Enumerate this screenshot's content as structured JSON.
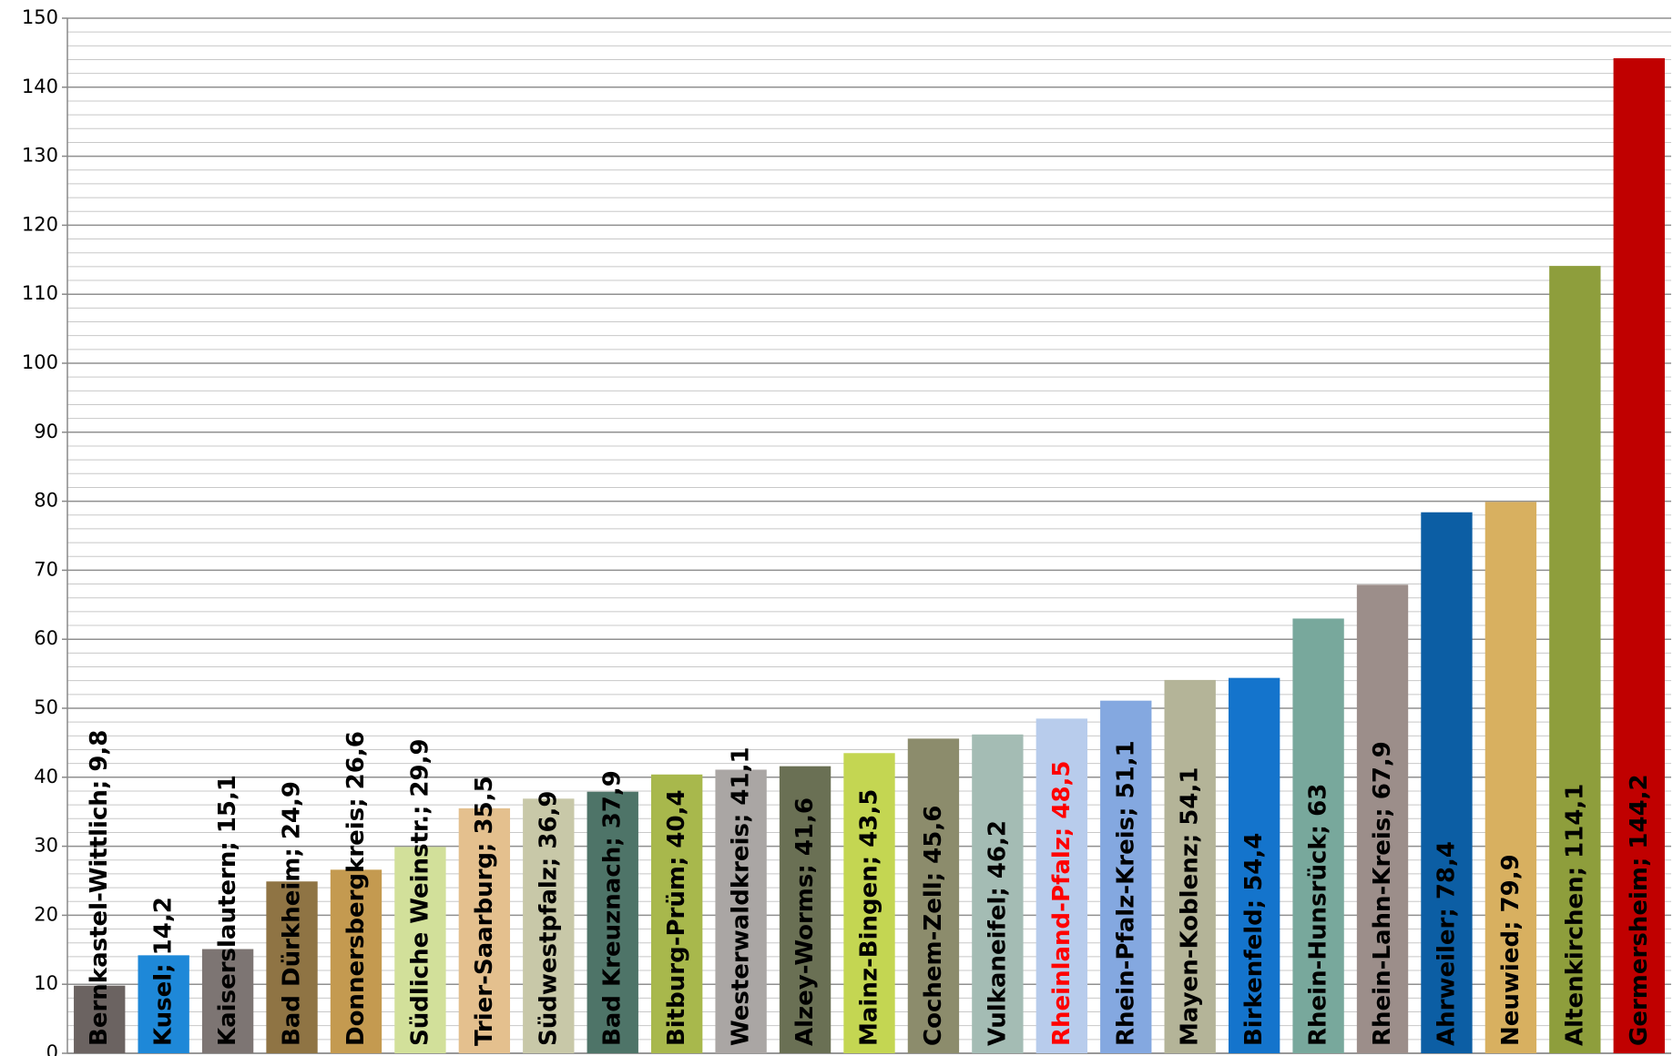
{
  "chart_data": {
    "type": "bar",
    "categories": [
      "Bernkastel-Wittlich",
      "Kusel",
      "Kaiserslautern",
      "Bad Dürkheim",
      "Donnersbergkreis",
      "Südliche Weinstr.",
      "Trier-Saarburg",
      "Südwestpfalz",
      "Bad Kreuznach",
      "Bitburg-Prüm",
      "Westerwaldkreis",
      "Alzey-Worms",
      "Mainz-Bingen",
      "Cochem-Zell",
      "Vulkaneifel",
      "Rheinland-Pfalz",
      "Rhein-Pfalz-Kreis",
      "Mayen-Koblenz",
      "Birkenfeld",
      "Rhein-Hunsrück",
      "Rhein-Lahn-Kreis",
      "Ahrweiler",
      "Neuwied",
      "Altenkirchen",
      "Germersheim"
    ],
    "values": [
      9.8,
      14.2,
      15.1,
      24.9,
      26.6,
      29.9,
      35.5,
      36.9,
      37.9,
      40.4,
      41.1,
      41.6,
      43.5,
      45.6,
      46.2,
      48.5,
      51.1,
      54.1,
      54.4,
      63,
      67.9,
      78.4,
      79.9,
      114.1,
      144.2
    ],
    "value_labels": [
      "9,8",
      "14,2",
      "15,1",
      "24,9",
      "26,6",
      "29,9",
      "35,5",
      "36,9",
      "37,9",
      "40,4",
      "41,1",
      "41,6",
      "43,5",
      "45,6",
      "46,2",
      "48,5",
      "51,1",
      "54,1",
      "54,4",
      "63",
      "67,9",
      "78,4",
      "79,9",
      "114,1",
      "144,2"
    ],
    "label_separator": "; ",
    "colors": [
      "#6b6361",
      "#1e88d8",
      "#7d7573",
      "#8f7444",
      "#c49a50",
      "#d2e09a",
      "#e4c08e",
      "#c8c8a8",
      "#4e7468",
      "#a8b84c",
      "#aaa6a4",
      "#6a7054",
      "#c4d652",
      "#8c8c6c",
      "#a4bcb4",
      "#b8ccec",
      "#84a8e0",
      "#b4b498",
      "#1474cc",
      "#78a89c",
      "#9c8e8a",
      "#0c5ea4",
      "#d8b060",
      "#8e9e3c",
      "#c00000"
    ],
    "label_colors": [
      "#000000",
      "#000000",
      "#000000",
      "#000000",
      "#000000",
      "#000000",
      "#000000",
      "#000000",
      "#000000",
      "#000000",
      "#000000",
      "#000000",
      "#000000",
      "#000000",
      "#000000",
      "#ff0000",
      "#000000",
      "#000000",
      "#000000",
      "#000000",
      "#000000",
      "#000000",
      "#000000",
      "#000000",
      "#000000"
    ],
    "ylim": [
      0,
      150
    ],
    "yticks": [
      0,
      10,
      20,
      30,
      40,
      50,
      60,
      70,
      80,
      90,
      100,
      110,
      120,
      130,
      140,
      150
    ],
    "grid": true,
    "minor_grid": 2
  }
}
